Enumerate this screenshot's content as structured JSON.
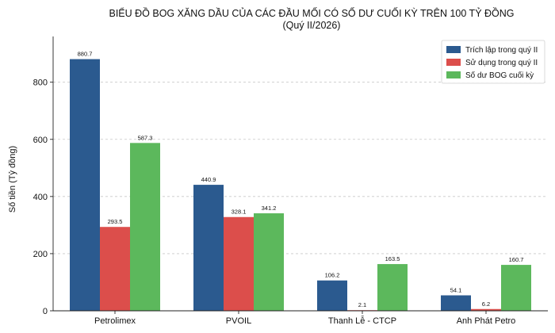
{
  "chart_data": {
    "type": "bar",
    "title_line1": "BIỂU ĐỒ BOG XĂNG DẦU CỦA CÁC ĐẦU MỐI CÓ SỐ DƯ CUỐI KỲ TRÊN 100 TỶ ĐỒNG",
    "title_line2": "(Quý II/2026)",
    "xlabel": "",
    "ylabel": "Số tiền (Tỷ đồng)",
    "ylim": [
      0,
      960
    ],
    "yticks": [
      0,
      200,
      400,
      600,
      800
    ],
    "grid": true,
    "legend_position": "top-right",
    "categories": [
      "Petrolimex",
      "PVOIL",
      "Thanh Lễ - CTCP",
      "Anh Phát Petro"
    ],
    "series": [
      {
        "name": "Trích lập trong quý II",
        "color": "#2b5a8f",
        "values": [
          880.7,
          440.9,
          106.2,
          54.1
        ]
      },
      {
        "name": "Sử dụng trong quý II",
        "color": "#dc4e4b",
        "values": [
          293.5,
          328.1,
          2.1,
          6.2
        ]
      },
      {
        "name": "Số dư BOG cuối kỳ",
        "color": "#5cb85c",
        "values": [
          587.3,
          341.2,
          163.5,
          160.7
        ]
      }
    ]
  }
}
